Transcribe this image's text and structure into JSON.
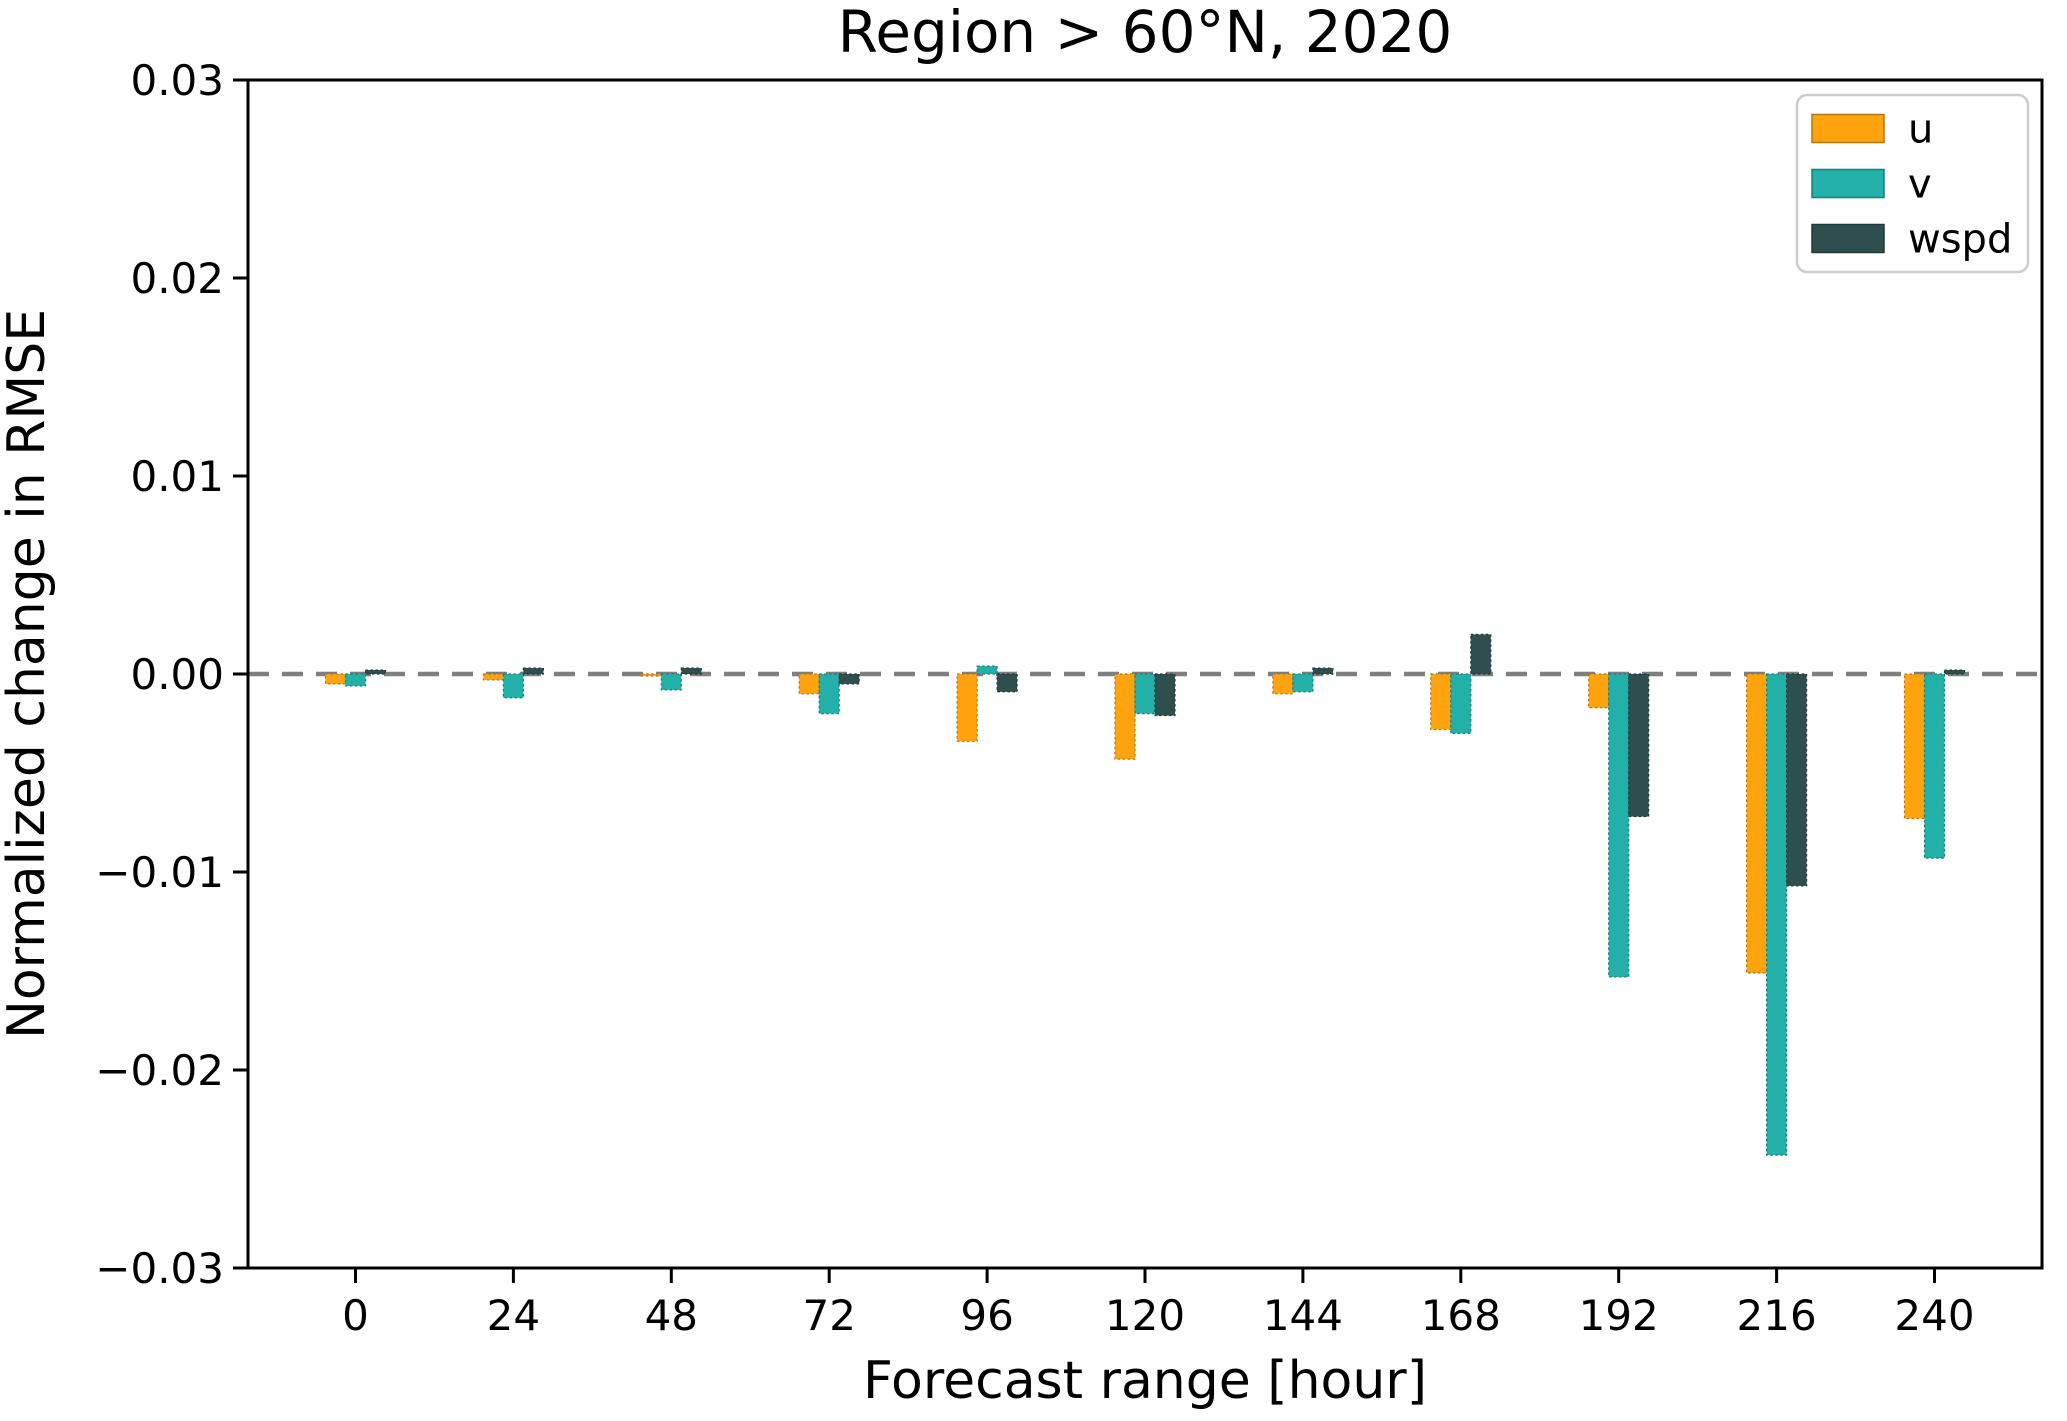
{
  "chart_data": {
    "type": "bar",
    "title": "Region > 60°N, 2020",
    "xlabel": "Forecast range [hour]",
    "ylabel": "Normalized change in RMSE",
    "categories": [
      0,
      24,
      48,
      72,
      96,
      120,
      144,
      168,
      192,
      216,
      240
    ],
    "series": [
      {
        "name": "u",
        "color": "#ffa40e",
        "values": [
          -0.0005,
          -0.0003,
          -0.0001,
          -0.001,
          -0.0034,
          -0.0043,
          -0.001,
          -0.0028,
          -0.0017,
          -0.0151,
          -0.0073
        ]
      },
      {
        "name": "v",
        "color": "#23b0a8",
        "values": [
          -0.0006,
          -0.0012,
          -0.0008,
          -0.002,
          0.0004,
          -0.002,
          -0.0009,
          -0.003,
          -0.0153,
          -0.0243,
          -0.0093
        ]
      },
      {
        "name": "wspd",
        "color": "#2f4f4f",
        "values": [
          0.0002,
          0.0003,
          0.0003,
          -0.0005,
          -0.0009,
          -0.0021,
          0.0003,
          0.002,
          -0.0072,
          -0.0107,
          0.0002
        ]
      }
    ],
    "ylim": [
      -0.03,
      0.03
    ],
    "yticks": [
      0.03,
      0.02,
      0.01,
      0.0,
      -0.01,
      -0.02,
      -0.03
    ],
    "grid": false,
    "zero_line": {
      "y": 0.0,
      "style": "dashed",
      "color": "#7f7f7f"
    },
    "legend": {
      "position": "upper right",
      "entries": [
        "u",
        "v",
        "wspd"
      ]
    },
    "axis_color": "#000000",
    "background": "#ffffff"
  }
}
